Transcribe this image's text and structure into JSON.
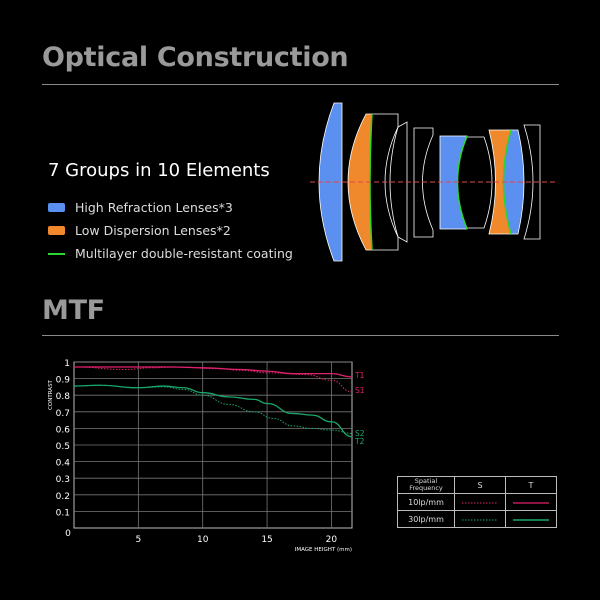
{
  "section1": {
    "title": "Optical Construction",
    "groups": "7 Groups in 10 Elements",
    "legend": [
      {
        "label": "High Refraction Lenses*3",
        "color": "#5b8ff0",
        "kind": "box"
      },
      {
        "label": "Low Dispersion Lenses*2",
        "color": "#f0892b",
        "kind": "box"
      },
      {
        "label": "Multilayer double-resistant coating",
        "color": "#2bd62b",
        "kind": "line"
      }
    ]
  },
  "section2": {
    "title": "MTF"
  },
  "chart_data": {
    "type": "line",
    "xlabel": "IMAGE HEIGHT  (mm)",
    "ylabel": "CONTRAST",
    "xlim": [
      0,
      21.6
    ],
    "ylim": [
      0,
      1
    ],
    "grid": true,
    "xticks": [
      "0",
      "5",
      "10",
      "15",
      "20"
    ],
    "yticks": [
      "1",
      "0.9",
      "0.8",
      "0.7",
      "0.6",
      "0.5",
      "0.4",
      "0.3",
      "0.2",
      "0.1"
    ],
    "series": [
      {
        "name": "T1",
        "color": "#e0226e",
        "dash": false,
        "x": [
          0,
          5,
          7.5,
          10,
          13,
          15,
          17,
          20,
          21.6
        ],
        "y": [
          0.97,
          0.97,
          0.97,
          0.965,
          0.955,
          0.945,
          0.93,
          0.93,
          0.91
        ]
      },
      {
        "name": "S1",
        "color": "#e0226e",
        "dash": true,
        "x": [
          0,
          4,
          6,
          8,
          11,
          13,
          15,
          18,
          20,
          21.6
        ],
        "y": [
          0.97,
          0.955,
          0.965,
          0.97,
          0.96,
          0.95,
          0.935,
          0.925,
          0.89,
          0.82
        ]
      },
      {
        "name": "S2",
        "color": "#1aa86a",
        "dash": true,
        "x": [
          0,
          2,
          5,
          7,
          8.5,
          10,
          12,
          14,
          15.5,
          17,
          18.5,
          20,
          21.6
        ],
        "y": [
          0.855,
          0.86,
          0.845,
          0.85,
          0.835,
          0.8,
          0.745,
          0.7,
          0.66,
          0.615,
          0.6,
          0.59,
          0.57
        ]
      },
      {
        "name": "T2",
        "color": "#1aa86a",
        "dash": false,
        "x": [
          0,
          2,
          5,
          7,
          8.5,
          10,
          12,
          14,
          15,
          17,
          18.5,
          20,
          21.6
        ],
        "y": [
          0.855,
          0.86,
          0.845,
          0.855,
          0.845,
          0.815,
          0.79,
          0.775,
          0.75,
          0.69,
          0.68,
          0.64,
          0.55
        ]
      }
    ],
    "table": {
      "header": [
        "Spatial Frequency",
        "S",
        "T"
      ],
      "rows": [
        "10lp/mm",
        "30lp/mm"
      ]
    }
  }
}
